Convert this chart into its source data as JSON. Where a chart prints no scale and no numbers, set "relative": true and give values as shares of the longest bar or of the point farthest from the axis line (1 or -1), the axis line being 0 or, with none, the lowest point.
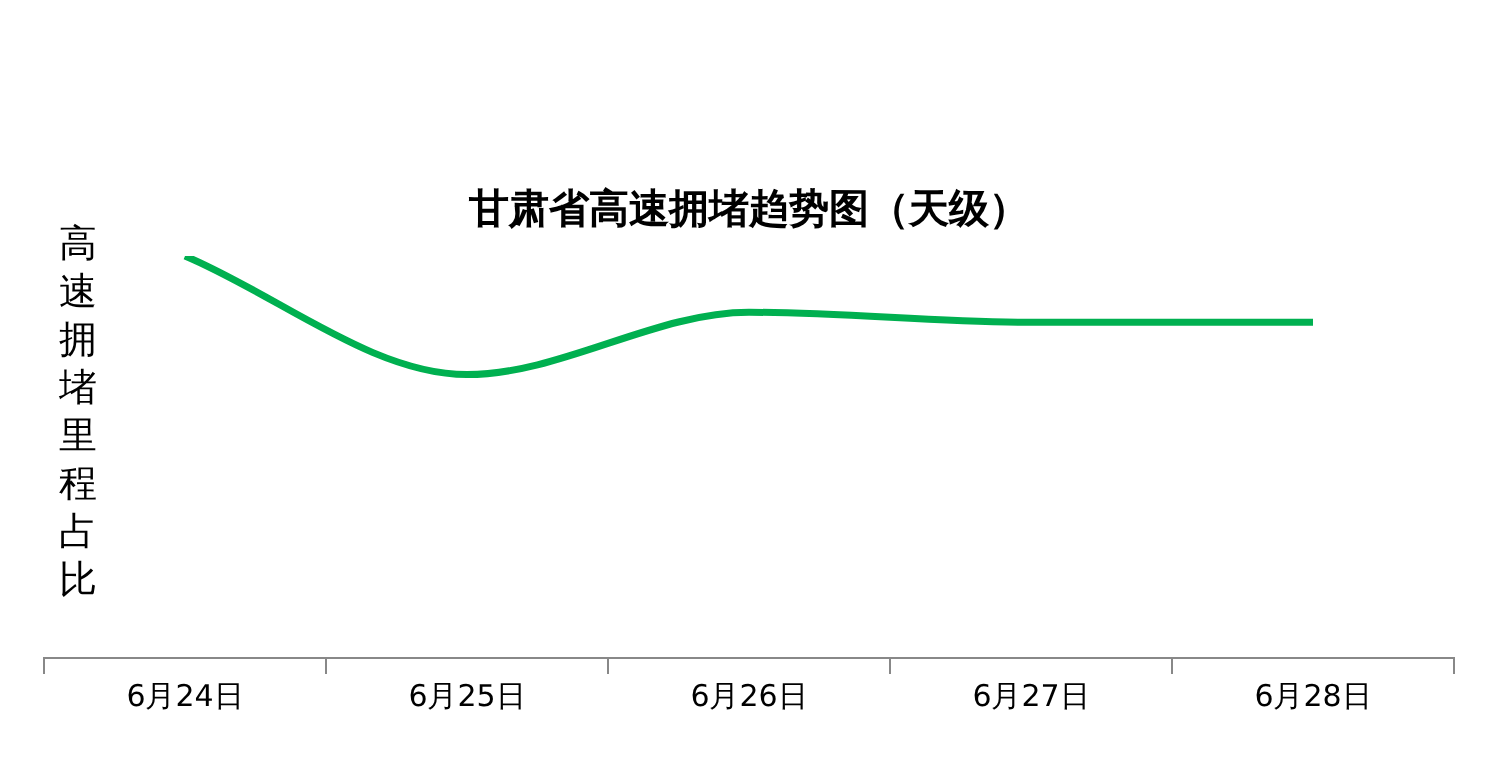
{
  "chart_data": {
    "type": "line",
    "title": "甘肃省高速拥堵趋势图（天级）",
    "ylabel": "高速拥堵里程占比",
    "relative": true,
    "categories": [
      "6月24日",
      "6月25日",
      "6月26日",
      "6月27日",
      "6月28日"
    ],
    "series": [
      {
        "color": "#00b050",
        "values": [
          1,
          0.705,
          0.86,
          0.835,
          0.835
        ]
      }
    ],
    "legend": false,
    "grid": false,
    "marker": "none"
  }
}
